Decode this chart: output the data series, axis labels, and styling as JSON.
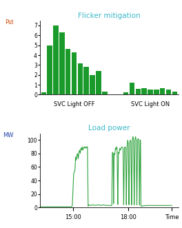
{
  "title1": "Flicker mitigation",
  "title2": "Load power",
  "title_color": "#3ab8c8",
  "bar_color": "#1a9a2a",
  "line_color": "#1a9a2a",
  "ylabel1": "Pst",
  "ylabel2": "MW",
  "ylabel1_color": "#cc4400",
  "ylabel2_color": "#2244aa",
  "xtick2_labels": [
    "15:00",
    "18:00",
    "Time"
  ],
  "bar_values_off": [
    0.25,
    5.0,
    7.0,
    6.3,
    4.6,
    4.3,
    3.2,
    2.8,
    2.0,
    2.4,
    0.3
  ],
  "bar_values_on": [
    0.25,
    1.2,
    0.6,
    0.65,
    0.55,
    0.55,
    0.65,
    0.55,
    0.3
  ],
  "ylim1": [
    0,
    7.5
  ],
  "yticks1": [
    0,
    1,
    2,
    3,
    4,
    5,
    6,
    7
  ],
  "ylim2": [
    0,
    110
  ],
  "yticks2": [
    0,
    20,
    40,
    60,
    80,
    100
  ],
  "xtick2_pos": [
    0.25,
    0.667,
    1.0
  ],
  "background": "#ffffff"
}
